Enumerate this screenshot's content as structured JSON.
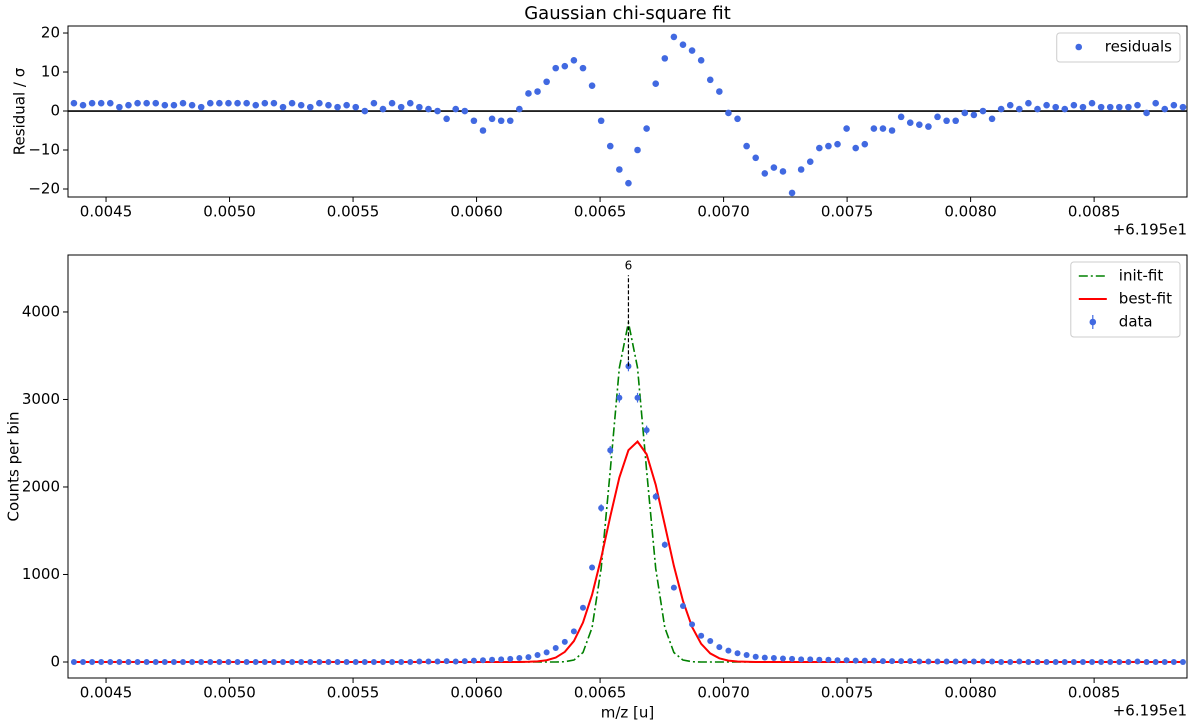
{
  "chart_data": [
    {
      "type": "scatter",
      "title": "Gaussian chi-square fit",
      "ylabel": "Residual / σ",
      "x_offset_label": "+6.195e1",
      "x": [
        0.00437,
        0.0044068,
        0.0044436,
        0.0044804,
        0.0045172,
        0.004554,
        0.0045908,
        0.0046276,
        0.0046644,
        0.0047012,
        0.004738,
        0.0047748,
        0.0048116,
        0.0048484,
        0.0048852,
        0.004922,
        0.0049588,
        0.0049956,
        0.0050324,
        0.0050692,
        0.005106,
        0.0051428,
        0.0051796,
        0.0052164,
        0.0052532,
        0.00529,
        0.0053268,
        0.0053636,
        0.0054004,
        0.0054372,
        0.005474,
        0.0055108,
        0.0055476,
        0.0055844,
        0.0056212,
        0.005658,
        0.0056948,
        0.0057316,
        0.0057684,
        0.0058052,
        0.005842,
        0.0058788,
        0.0059156,
        0.0059524,
        0.0059892,
        0.006026,
        0.0060628,
        0.0060996,
        0.0061364,
        0.0061732,
        0.00621,
        0.0062468,
        0.0062836,
        0.0063204,
        0.0063572,
        0.006394,
        0.0064308,
        0.0064676,
        0.0065044,
        0.0065412,
        0.006578,
        0.0066148,
        0.0066516,
        0.0066884,
        0.0067252,
        0.006762,
        0.0067988,
        0.0068356,
        0.0068724,
        0.0069092,
        0.006946,
        0.0069828,
        0.0070196,
        0.0070564,
        0.0070932,
        0.00713,
        0.0071668,
        0.0072036,
        0.0072404,
        0.0072772,
        0.007314,
        0.0073508,
        0.0073876,
        0.0074244,
        0.0074612,
        0.007498,
        0.0075348,
        0.0075716,
        0.0076084,
        0.0076452,
        0.007682,
        0.0077188,
        0.0077556,
        0.0077924,
        0.0078292,
        0.007866,
        0.0079028,
        0.0079396,
        0.0079764,
        0.0080132,
        0.00805,
        0.0080868,
        0.0081236,
        0.0081604,
        0.0081972,
        0.008234,
        0.0082708,
        0.0083076,
        0.0083444,
        0.0083812,
        0.008418,
        0.0084548,
        0.0084916,
        0.0085284,
        0.0085652,
        0.008602,
        0.0086388,
        0.0086756,
        0.0087124,
        0.0087492,
        0.008786,
        0.0088228,
        0.0088596
      ],
      "series": [
        {
          "name": "residuals",
          "color": "#4169e1",
          "values": [
            2,
            1.5,
            2,
            2,
            2,
            1,
            1.5,
            2,
            2,
            2,
            1.5,
            1.5,
            2,
            1.5,
            1,
            2,
            2,
            2,
            2,
            2,
            1.5,
            2,
            2,
            1,
            2,
            1.5,
            1,
            2,
            1.5,
            1,
            1.5,
            1,
            0,
            2,
            0.5,
            2,
            1,
            2,
            1,
            0.5,
            0,
            -2,
            0.5,
            0,
            -2.5,
            -5,
            -2,
            -2.5,
            -2.5,
            0.5,
            4.5,
            5,
            7.5,
            11,
            11.5,
            13,
            11,
            6.5,
            -2.5,
            -9,
            -15,
            -18.5,
            -10,
            -4.5,
            7,
            13.5,
            19,
            17,
            15.5,
            13,
            8,
            5,
            -0.5,
            -2,
            -9,
            -12,
            -16,
            -14.5,
            -15.5,
            -21,
            -15,
            -13,
            -9.5,
            -9,
            -8.5,
            -4.5,
            -9.5,
            -8.5,
            -4.5,
            -4.5,
            -5,
            -1.5,
            -3,
            -3.5,
            -4,
            -1.5,
            -2.5,
            -2.5,
            -0.5,
            -1,
            0,
            -2,
            0.5,
            1.5,
            0.5,
            2,
            0.5,
            1.5,
            1,
            0.5,
            1.5,
            1,
            2,
            1,
            1,
            1,
            1,
            1.5,
            -0.5,
            2,
            0.5,
            1.5,
            1
          ]
        }
      ],
      "hline": 0,
      "xlim": [
        0.004346,
        0.008876
      ],
      "ylim": [
        -22.05,
        21.8
      ],
      "xticks": [
        0.0045,
        {
          "value": 0.005,
          "label": "0.0050"
        },
        0.0055,
        {
          "value": 0.006,
          "label": "0.0060"
        },
        0.0065,
        {
          "value": 0.007,
          "label": "0.0070"
        },
        0.0075,
        {
          "value": 0.008,
          "label": "0.0080"
        },
        0.0085
      ],
      "yticks": [
        {
          "value": -20,
          "label": "−20"
        },
        {
          "value": -10,
          "label": "−10"
        },
        0,
        10,
        20
      ],
      "legend": "upper right"
    },
    {
      "type": "line",
      "xlabel": "m/z [u]",
      "ylabel": "Counts per bin",
      "x_offset_label": "+6.195e1",
      "x": [
        0.00437,
        0.0044068,
        0.0044436,
        0.0044804,
        0.0045172,
        0.004554,
        0.0045908,
        0.0046276,
        0.0046644,
        0.0047012,
        0.004738,
        0.0047748,
        0.0048116,
        0.0048484,
        0.0048852,
        0.004922,
        0.0049588,
        0.0049956,
        0.0050324,
        0.0050692,
        0.005106,
        0.0051428,
        0.0051796,
        0.0052164,
        0.0052532,
        0.00529,
        0.0053268,
        0.0053636,
        0.0054004,
        0.0054372,
        0.005474,
        0.0055108,
        0.0055476,
        0.0055844,
        0.0056212,
        0.005658,
        0.0056948,
        0.0057316,
        0.0057684,
        0.0058052,
        0.005842,
        0.0058788,
        0.0059156,
        0.0059524,
        0.0059892,
        0.006026,
        0.0060628,
        0.0060996,
        0.0061364,
        0.0061732,
        0.00621,
        0.0062468,
        0.0062836,
        0.0063204,
        0.0063572,
        0.006394,
        0.0064308,
        0.0064676,
        0.0065044,
        0.0065412,
        0.006578,
        0.0066148,
        0.0066516,
        0.0066884,
        0.0067252,
        0.006762,
        0.0067988,
        0.0068356,
        0.0068724,
        0.0069092,
        0.006946,
        0.0069828,
        0.0070196,
        0.0070564,
        0.0070932,
        0.00713,
        0.0071668,
        0.0072036,
        0.0072404,
        0.0072772,
        0.007314,
        0.0073508,
        0.0073876,
        0.0074244,
        0.0074612,
        0.007498,
        0.0075348,
        0.0075716,
        0.0076084,
        0.0076452,
        0.007682,
        0.0077188,
        0.0077556,
        0.0077924,
        0.0078292,
        0.007866,
        0.0079028,
        0.0079396,
        0.0079764,
        0.0080132,
        0.00805,
        0.0080868,
        0.0081236,
        0.0081604,
        0.0081972,
        0.008234,
        0.0082708,
        0.0083076,
        0.0083444,
        0.0083812,
        0.008418,
        0.0084548,
        0.0084916,
        0.0085284,
        0.0085652,
        0.008602,
        0.0086388,
        0.0086756,
        0.0087124,
        0.0087492,
        0.008786,
        0.0088228,
        0.0088596
      ],
      "series": [
        {
          "name": "init-fit",
          "color": "green",
          "style": "dashdot",
          "values": [
            0,
            0,
            0,
            0,
            0,
            0,
            0,
            0,
            0,
            0,
            0,
            0,
            0,
            0,
            0,
            0,
            0,
            0,
            0,
            0,
            0,
            0,
            0,
            0,
            0,
            0,
            0,
            0,
            0,
            0,
            0,
            0,
            0,
            0,
            0,
            0,
            0,
            0,
            0,
            0,
            0,
            0,
            0,
            0,
            0,
            0,
            0,
            0,
            0,
            0,
            0,
            0,
            0,
            0,
            3,
            22,
            108,
            393,
            1070,
            2189,
            3363,
            3880,
            3363,
            2189,
            1070,
            393,
            108,
            22,
            3,
            0,
            0,
            0,
            0,
            0,
            0,
            0,
            0,
            0,
            0,
            0,
            0,
            0,
            0,
            0,
            0,
            0,
            0,
            0,
            0,
            0,
            0,
            0,
            0,
            0,
            0,
            0,
            0,
            0,
            0,
            0,
            0,
            0,
            0,
            0,
            0,
            0,
            0,
            0,
            0,
            0,
            0,
            0,
            0,
            0,
            0,
            0,
            0,
            0,
            0,
            0,
            0,
            0,
            0
          ]
        },
        {
          "name": "best-fit",
          "color": "red",
          "style": "solid",
          "values": [
            0,
            0,
            0,
            0,
            0,
            0,
            0,
            0,
            0,
            0,
            0,
            0,
            0,
            0,
            0,
            0,
            0,
            0,
            0,
            0,
            0,
            0,
            0,
            0,
            0,
            0,
            0,
            0,
            0,
            0,
            0,
            0,
            0,
            0,
            0,
            0,
            0,
            0,
            0,
            0,
            0,
            0,
            0,
            0,
            0,
            0,
            0,
            0,
            0,
            0,
            2,
            7,
            20,
            50,
            115,
            239,
            451,
            769,
            1188,
            1662,
            2108,
            2421,
            2519,
            2374,
            2026,
            1567,
            1098,
            697,
            400,
            208,
            98,
            42,
            16,
            6,
            2,
            0,
            0,
            0,
            0,
            0,
            0,
            0,
            0,
            0,
            0,
            0,
            0,
            0,
            0,
            0,
            0,
            0,
            0,
            0,
            0,
            0,
            0,
            0,
            0,
            0,
            0,
            0,
            0,
            0,
            0,
            0,
            0,
            0,
            0,
            0,
            0,
            0,
            0,
            0,
            0,
            0,
            0,
            0,
            0,
            0,
            0,
            0,
            0
          ]
        },
        {
          "name": "data",
          "color": "#4169e1",
          "style": "errorbar",
          "values": [
            0,
            0,
            0,
            0,
            0,
            0,
            0,
            0,
            0,
            0,
            0,
            0,
            0,
            0,
            0,
            0,
            0,
            0,
            0,
            0,
            0,
            0,
            0,
            0,
            0,
            0,
            0,
            0,
            0,
            0,
            0,
            0,
            0,
            0,
            0,
            0,
            0,
            0,
            5,
            5,
            5,
            10,
            5,
            10,
            15,
            20,
            25,
            30,
            35,
            45,
            55,
            80,
            110,
            160,
            230,
            350,
            620,
            1080,
            1760,
            2420,
            3020,
            3380,
            3020,
            2650,
            1890,
            1340,
            850,
            640,
            430,
            300,
            240,
            170,
            130,
            100,
            80,
            60,
            50,
            45,
            40,
            35,
            30,
            30,
            25,
            25,
            20,
            20,
            15,
            15,
            15,
            10,
            10,
            10,
            10,
            5,
            5,
            5,
            5,
            5,
            5,
            5,
            5,
            5,
            0,
            0,
            5,
            0,
            0,
            0,
            0,
            0,
            0,
            0,
            0,
            0,
            0,
            0,
            0,
            5,
            0,
            0,
            0,
            0,
            0
          ],
          "errors": [
            1,
            1,
            1,
            1,
            1,
            1,
            1,
            1,
            1,
            1,
            1,
            1,
            1,
            1,
            1,
            1,
            1,
            1,
            1,
            1,
            1,
            1,
            1,
            1,
            1,
            1,
            1,
            1,
            1,
            1,
            1,
            1,
            1,
            1,
            1,
            1,
            1,
            1,
            2,
            2,
            2,
            3,
            2,
            3,
            4,
            4,
            5,
            5,
            6,
            7,
            7,
            9,
            10,
            13,
            15,
            19,
            25,
            33,
            42,
            49,
            55,
            58,
            55,
            51,
            43,
            37,
            29,
            25,
            21,
            17,
            15,
            13,
            11,
            10,
            9,
            8,
            7,
            7,
            6,
            6,
            5,
            5,
            5,
            5,
            4,
            4,
            4,
            4,
            4,
            3,
            3,
            3,
            3,
            2,
            2,
            2,
            2,
            2,
            2,
            2,
            2,
            2,
            1,
            1,
            2,
            1,
            1,
            1,
            1,
            1,
            1,
            1,
            1,
            1,
            1,
            1,
            1,
            2,
            1,
            1,
            1,
            1,
            1
          ]
        }
      ],
      "annotations": [
        {
          "text": "6",
          "x": 0.0066148,
          "y_range": [
            3380,
            4420
          ]
        }
      ],
      "xlim": [
        0.004346,
        0.008876
      ],
      "ylim": [
        -183,
        4651
      ],
      "xticks": [
        0.0045,
        {
          "value": 0.005,
          "label": "0.0050"
        },
        0.0055,
        {
          "value": 0.006,
          "label": "0.0060"
        },
        0.0065,
        {
          "value": 0.007,
          "label": "0.0070"
        },
        0.0075,
        {
          "value": 0.008,
          "label": "0.0080"
        },
        0.0085
      ],
      "yticks": [
        0,
        1000,
        2000,
        3000,
        4000
      ],
      "legend": "upper right"
    }
  ]
}
